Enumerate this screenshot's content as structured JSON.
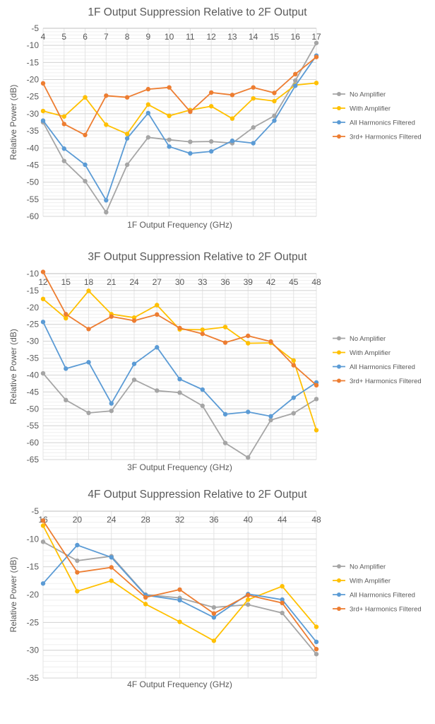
{
  "series_names": [
    "No Amplifier",
    "With Amplifier",
    "All Harmonics Filtered",
    "3rd+ Harmonics Filtered"
  ],
  "colors": {
    "No Amplifier": "#A5A5A5",
    "With Amplifier": "#FFC000",
    "All Harmonics Filtered": "#5B9BD5",
    "3rd+ Harmonics Filtered": "#ED7D31"
  },
  "chart_data": [
    {
      "type": "line",
      "title": "1F Output Suppression Relative to 2F Output",
      "xlabel": "1F Output Frequency (GHz)",
      "ylabel": "Relative Power (dB)",
      "categories": [
        "4",
        "5",
        "6",
        "7",
        "8",
        "9",
        "10",
        "11",
        "12",
        "13",
        "14",
        "15",
        "16",
        "17"
      ],
      "ylim": [
        -60,
        -5
      ],
      "ystep": 5,
      "yticks": [
        "-5",
        "-10",
        "-15",
        "-20",
        "-25",
        "-30",
        "-35",
        "-40",
        "-45",
        "-50",
        "-55",
        "-60"
      ],
      "legend": "right",
      "grid": true,
      "series": [
        {
          "name": "No Amplifier",
          "values": [
            -32.5,
            -43.8,
            -49.7,
            -58.8,
            -44.9,
            -36.9,
            -37.6,
            -38.2,
            -38.1,
            -38.6,
            -34.0,
            -30.6,
            -20.3,
            -9.3
          ]
        },
        {
          "name": "With Amplifier",
          "values": [
            -29.2,
            -30.8,
            -25.2,
            -33.2,
            -35.9,
            -27.3,
            -30.6,
            -28.9,
            -27.8,
            -31.4,
            -25.5,
            -26.3,
            -21.6,
            -21.0
          ]
        },
        {
          "name": "All Harmonics Filtered",
          "values": [
            -32.0,
            -40.2,
            -44.9,
            -55.3,
            -37.2,
            -29.8,
            -39.6,
            -41.6,
            -41.0,
            -37.9,
            -38.6,
            -32.0,
            -21.8,
            -13.0
          ]
        },
        {
          "name": "3rd+ Harmonics Filtered",
          "values": [
            -21.1,
            -33.0,
            -36.2,
            -24.7,
            -25.2,
            -22.8,
            -22.3,
            -29.4,
            -23.8,
            -24.5,
            -22.3,
            -23.9,
            -18.4,
            -13.4
          ]
        }
      ]
    },
    {
      "type": "line",
      "title": "3F Output Suppression Relative to 2F Output",
      "xlabel": "3F Output Frequency (GHz)",
      "ylabel": "Relative Power (dB)",
      "categories": [
        "12",
        "15",
        "18",
        "21",
        "24",
        "27",
        "30",
        "33",
        "36",
        "39",
        "42",
        "45",
        "48"
      ],
      "ylim": [
        -65,
        -10
      ],
      "ystep": 5,
      "yticks": [
        "-10",
        "-15",
        "-20",
        "-25",
        "-30",
        "-35",
        "-40",
        "-45",
        "-50",
        "-55",
        "-60",
        "-65"
      ],
      "legend": "right",
      "grid": true,
      "series": [
        {
          "name": "No Amplifier",
          "values": [
            -39.5,
            -47.4,
            -51.2,
            -50.6,
            -41.4,
            -44.6,
            -45.2,
            -49.1,
            -60.1,
            -64.4,
            -53.3,
            -51.3,
            -47.1
          ]
        },
        {
          "name": "With Amplifier",
          "values": [
            -17.5,
            -23.2,
            -15.1,
            -22.0,
            -23.0,
            -19.3,
            -26.5,
            -26.6,
            -25.8,
            -30.6,
            -30.5,
            -35.7,
            -56.3
          ]
        },
        {
          "name": "All Harmonics Filtered",
          "values": [
            -24.3,
            -38.1,
            -36.2,
            -48.4,
            -36.7,
            -31.8,
            -41.2,
            -44.3,
            -51.6,
            -50.9,
            -52.2,
            -46.7,
            -42.2
          ]
        },
        {
          "name": "3rd+ Harmonics Filtered",
          "values": [
            -9.5,
            -22.0,
            -26.4,
            -22.7,
            -23.9,
            -22.1,
            -26.1,
            -27.8,
            -30.4,
            -28.4,
            -30.1,
            -37.1,
            -43.0
          ]
        }
      ]
    },
    {
      "type": "line",
      "title": "4F Output Suppression Relative to 2F Output",
      "xlabel": "4F Output Frequency (GHz)",
      "ylabel": "Relative Power (dB)",
      "categories": [
        "16",
        "20",
        "24",
        "28",
        "32",
        "36",
        "40",
        "44",
        "48"
      ],
      "ylim": [
        -35,
        -5
      ],
      "ystep": 5,
      "yticks": [
        "-5",
        "-10",
        "-15",
        "-20",
        "-25",
        "-30",
        "-35"
      ],
      "legend": "right",
      "grid": true,
      "series": [
        {
          "name": "No Amplifier",
          "values": [
            -10.5,
            -13.9,
            -13.1,
            -20.0,
            -20.6,
            -22.3,
            -21.8,
            -23.3,
            -30.7
          ]
        },
        {
          "name": "With Amplifier",
          "values": [
            -7.6,
            -19.4,
            -17.5,
            -21.7,
            -24.9,
            -28.3,
            -20.9,
            -18.5,
            -25.8
          ]
        },
        {
          "name": "All Harmonics Filtered",
          "values": [
            -18.0,
            -11.1,
            -13.3,
            -20.1,
            -21.0,
            -24.1,
            -19.9,
            -20.9,
            -28.5
          ]
        },
        {
          "name": "3rd+ Harmonics Filtered",
          "values": [
            -6.7,
            -16.0,
            -15.1,
            -20.5,
            -19.1,
            -23.4,
            -20.1,
            -21.5,
            -29.8
          ]
        }
      ]
    }
  ]
}
